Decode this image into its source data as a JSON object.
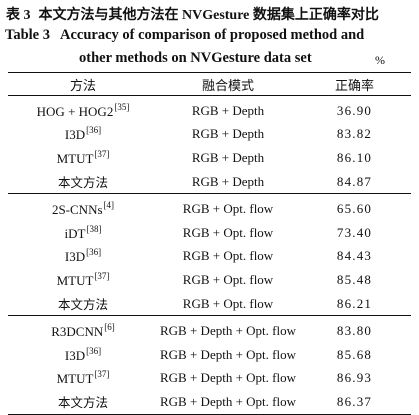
{
  "caption": {
    "cn_label": "表 3",
    "cn_title": "本文方法与其他方法在 NVGesture 数据集上正确率对比",
    "en_label": "Table 3",
    "en_title_line1": "Accuracy of comparison of proposed method and",
    "en_title_line2": "other methods on NVGesture data set",
    "unit": "%"
  },
  "table": {
    "headers": [
      "方法",
      "融合模式",
      "正确率"
    ],
    "groups": [
      [
        {
          "method": "HOG + HOG2",
          "ref": "[35]",
          "mode": "RGB + Depth",
          "accuracy": "36.90"
        },
        {
          "method": "I3D",
          "ref": "[36]",
          "mode": "RGB + Depth",
          "accuracy": "83.82"
        },
        {
          "method": "MTUT",
          "ref": "[37]",
          "mode": "RGB + Depth",
          "accuracy": "86.10"
        },
        {
          "method": "本文方法",
          "ref": "",
          "mode": "RGB + Depth",
          "accuracy": "84.87"
        }
      ],
      [
        {
          "method": "2S-CNNs",
          "ref": "[4]",
          "mode": "RGB + Opt. flow",
          "accuracy": "65.60"
        },
        {
          "method": "iDT",
          "ref": "[38]",
          "mode": "RGB + Opt. flow",
          "accuracy": "73.40"
        },
        {
          "method": "I3D",
          "ref": "[36]",
          "mode": "RGB + Opt. flow",
          "accuracy": "84.43"
        },
        {
          "method": "MTUT",
          "ref": "[37]",
          "mode": "RGB + Opt. flow",
          "accuracy": "85.48"
        },
        {
          "method": "本文方法",
          "ref": "",
          "mode": "RGB + Opt. flow",
          "accuracy": "86.21"
        }
      ],
      [
        {
          "method": "R3DCNN",
          "ref": "[6]",
          "mode": "RGB + Depth + Opt. flow",
          "accuracy": "83.80"
        },
        {
          "method": "I3D",
          "ref": "[36]",
          "mode": "RGB + Depth + Opt. flow",
          "accuracy": "85.68"
        },
        {
          "method": "MTUT",
          "ref": "[37]",
          "mode": "RGB + Depth + Opt. flow",
          "accuracy": "86.93"
        },
        {
          "method": "本文方法",
          "ref": "",
          "mode": "RGB + Depth + Opt. flow",
          "accuracy": "86.37"
        }
      ]
    ]
  }
}
